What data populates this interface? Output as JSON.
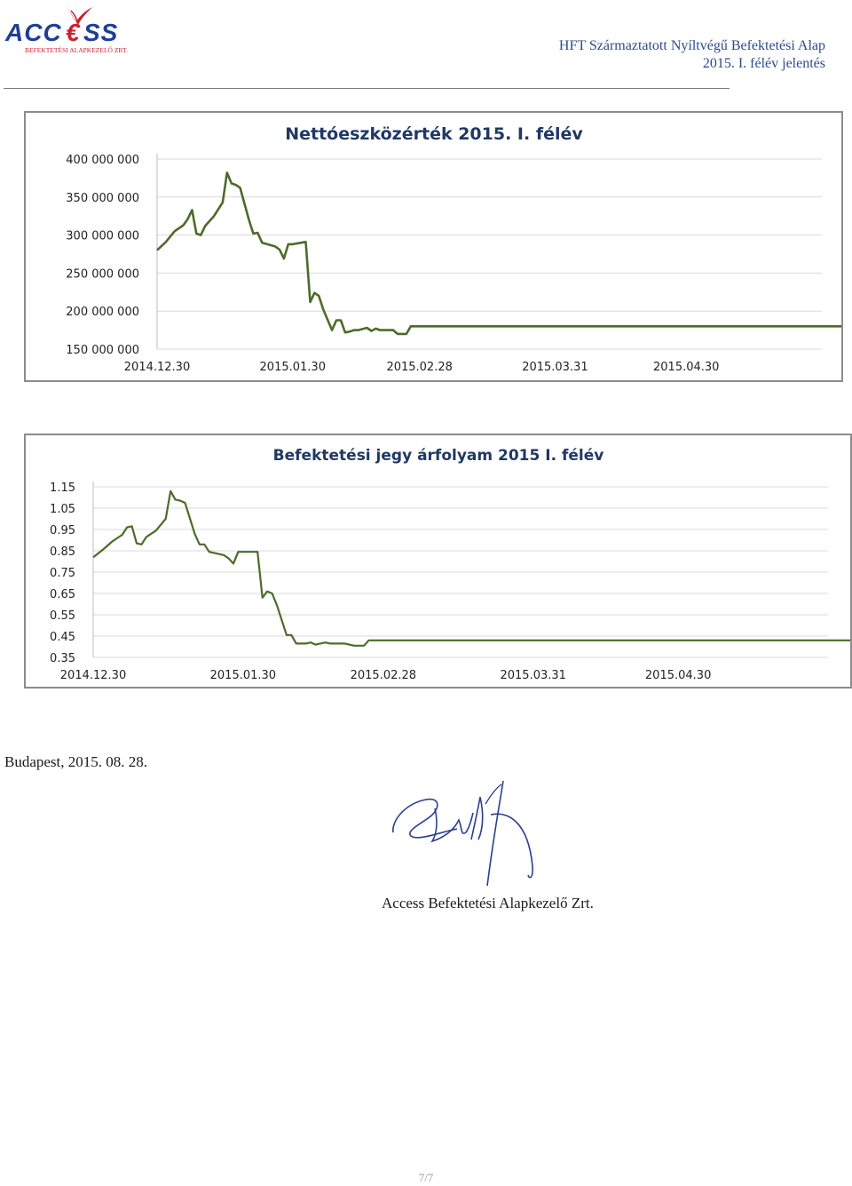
{
  "header": {
    "logo_text": "ACCESS",
    "logo_subtext": "BEFEKTETÉSI ALAPKEZELŐ ZRT.",
    "title_line1": "HFT Származtatott Nyíltvégű Befektetési Alap",
    "title_line2": "2015. I. félév jelentés"
  },
  "colors": {
    "brand_blue": "#1f3f93",
    "brand_red": "#c8202f",
    "line": "#4d6b2a",
    "grid": "#d9d9d9",
    "axis_text": "#222222",
    "title_blue": "#1f3864"
  },
  "chart_data": [
    {
      "type": "line",
      "title": "Nettóeszközérték 2015. I. félév",
      "xlabel": "",
      "ylabel": "",
      "x_ticks": [
        "2014.12.30",
        "2015.01.30",
        "2015.02.28",
        "2015.03.31",
        "2015.04.30"
      ],
      "y_ticks": [
        "150 000 000",
        "200 000 000",
        "250 000 000",
        "300 000 000",
        "350 000 000",
        "400 000 000"
      ],
      "ylim": [
        150000000,
        400000000
      ],
      "grid": true,
      "legend": "none",
      "series": [
        {
          "x": [
            "2014.12.30",
            "2015.01.01",
            "2015.01.02",
            "2015.01.03",
            "2015.01.05",
            "2015.01.06",
            "2015.01.07",
            "2015.01.08",
            "2015.01.09",
            "2015.01.10",
            "2015.01.12",
            "2015.01.14",
            "2015.01.15",
            "2015.01.16",
            "2015.01.17",
            "2015.01.18",
            "2015.01.20",
            "2015.01.21",
            "2015.01.22",
            "2015.01.23",
            "2015.01.26",
            "2015.01.27",
            "2015.01.28",
            "2015.01.29",
            "2015.01.30",
            "2015.02.02",
            "2015.02.03",
            "2015.02.04",
            "2015.02.05",
            "2015.02.06",
            "2015.02.08",
            "2015.02.09",
            "2015.02.10",
            "2015.02.11",
            "2015.02.12",
            "2015.02.13",
            "2015.02.14",
            "2015.02.16",
            "2015.02.17",
            "2015.02.18",
            "2015.02.19",
            "2015.02.20",
            "2015.02.22",
            "2015.02.23",
            "2015.02.24",
            "2015.02.25",
            "2015.02.26",
            "2015.02.27",
            "2015.03.01",
            "2015.03.04",
            "2015.03.06",
            "2015.03.09",
            "2015.03.11",
            "2015.03.12",
            "2015.03.17",
            "2015.03.20",
            "2015.03.24",
            "2015.04.30",
            "2015.05.15",
            "2015.06.30"
          ],
          "values": [
            280000000,
            291000000,
            298000000,
            305000000,
            313000000,
            321000000,
            333000000,
            302000000,
            300000000,
            312000000,
            325000000,
            343000000,
            382000000,
            368000000,
            366000000,
            362000000,
            320000000,
            302000000,
            303000000,
            290000000,
            285000000,
            281000000,
            269000000,
            288000000,
            288000000,
            291000000,
            212000000,
            224000000,
            220000000,
            202000000,
            175000000,
            188000000,
            188000000,
            172000000,
            173000000,
            175000000,
            175000000,
            178000000,
            174000000,
            177000000,
            175000000,
            175000000,
            175000000,
            170000000,
            170000000,
            170000000,
            180000000,
            180000000,
            180000000,
            180000000,
            180000000,
            180000000,
            180000000,
            180000000,
            180000000,
            180000000,
            180000000,
            180000000,
            180000000,
            180000000
          ]
        }
      ]
    },
    {
      "type": "line",
      "title": "Befektetési jegy árfolyam 2015 I.  félév",
      "xlabel": "",
      "ylabel": "",
      "x_ticks": [
        "2014.12.30",
        "2015.01.30",
        "2015.02.28",
        "2015.03.31",
        "2015.04.30"
      ],
      "y_ticks": [
        "0.35",
        "0.45",
        "0.55",
        "0.65",
        "0.75",
        "0.85",
        "0.95",
        "1.05",
        "1.15"
      ],
      "ylim": [
        0.35,
        1.15
      ],
      "grid": true,
      "legend": "none",
      "series": [
        {
          "x": [
            "2014.12.30",
            "2015.01.01",
            "2015.01.02",
            "2015.01.03",
            "2015.01.05",
            "2015.01.06",
            "2015.01.07",
            "2015.01.08",
            "2015.01.09",
            "2015.01.10",
            "2015.01.12",
            "2015.01.14",
            "2015.01.15",
            "2015.01.16",
            "2015.01.17",
            "2015.01.18",
            "2015.01.20",
            "2015.01.21",
            "2015.01.22",
            "2015.01.23",
            "2015.01.26",
            "2015.01.27",
            "2015.01.28",
            "2015.01.29",
            "2015.01.30",
            "2015.02.02",
            "2015.02.03",
            "2015.02.04",
            "2015.02.05",
            "2015.02.06",
            "2015.02.08",
            "2015.02.09",
            "2015.02.10",
            "2015.02.11",
            "2015.02.12",
            "2015.02.13",
            "2015.02.14",
            "2015.02.16",
            "2015.02.17",
            "2015.02.18",
            "2015.02.19",
            "2015.02.20",
            "2015.02.22",
            "2015.02.23",
            "2015.02.24",
            "2015.02.25",
            "2015.02.26",
            "2015.02.27",
            "2015.03.01",
            "2015.03.04",
            "2015.03.06",
            "2015.03.09",
            "2015.03.11",
            "2015.03.12",
            "2015.03.17",
            "2015.03.20",
            "2015.03.24",
            "2015.04.30",
            "2015.05.15",
            "2015.06.30"
          ],
          "values": [
            0.82,
            0.855,
            0.875,
            0.895,
            0.925,
            0.96,
            0.965,
            0.885,
            0.88,
            0.915,
            0.945,
            1.0,
            1.13,
            1.09,
            1.085,
            1.075,
            0.93,
            0.88,
            0.88,
            0.845,
            0.83,
            0.815,
            0.79,
            0.845,
            0.845,
            0.845,
            0.63,
            0.66,
            0.65,
            0.595,
            0.455,
            0.455,
            0.415,
            0.415,
            0.415,
            0.42,
            0.41,
            0.42,
            0.415,
            0.415,
            0.415,
            0.415,
            0.405,
            0.405,
            0.405,
            0.43,
            0.43,
            0.43,
            0.43,
            0.43,
            0.43,
            0.43,
            0.43,
            0.43,
            0.43,
            0.43,
            0.43,
            0.43,
            0.43,
            0.43
          ]
        }
      ]
    }
  ],
  "footer": {
    "place_date": "Budapest, 2015. 08. 28.",
    "company": "Access Befektetési Alapkezelő Zrt.",
    "page_number": "7/7"
  }
}
